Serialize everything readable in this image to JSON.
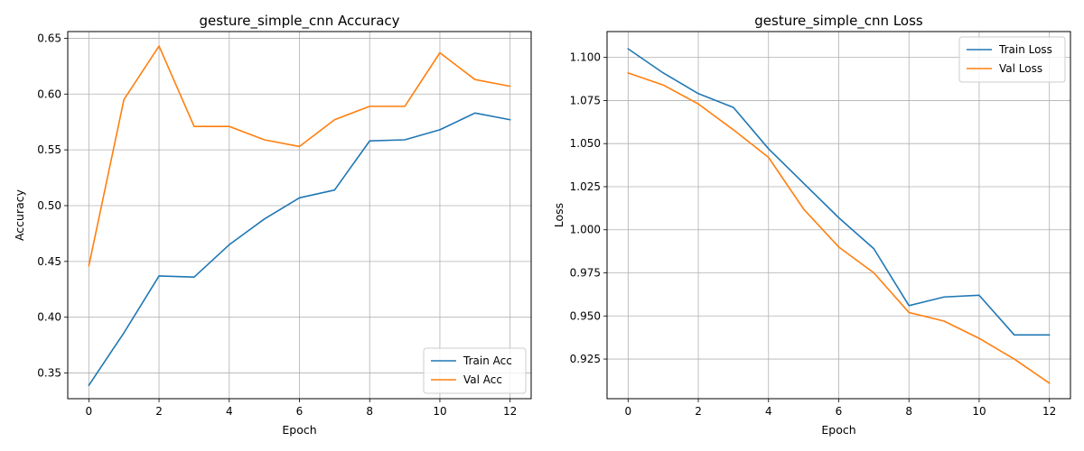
{
  "chart_data": [
    {
      "type": "line",
      "title": "gesture_simple_cnn Accuracy",
      "xlabel": "Epoch",
      "ylabel": "Accuracy",
      "xlim": [
        -0.6,
        12.6
      ],
      "ylim": [
        0.327,
        0.656
      ],
      "xticks": [
        0,
        2,
        4,
        6,
        8,
        10,
        12
      ],
      "yticks": [
        0.35,
        0.4,
        0.45,
        0.5,
        0.55,
        0.6,
        0.65
      ],
      "ytick_labels": [
        "0.35",
        "0.40",
        "0.45",
        "0.50",
        "0.55",
        "0.60",
        "0.65"
      ],
      "grid": true,
      "legend_position": "lower-right",
      "x": [
        0,
        1,
        2,
        3,
        4,
        5,
        6,
        7,
        8,
        9,
        10,
        11,
        12
      ],
      "series": [
        {
          "name": "Train Acc",
          "color": "#1f77b4",
          "values": [
            0.339,
            0.386,
            0.437,
            0.436,
            0.465,
            0.488,
            0.507,
            0.514,
            0.558,
            0.559,
            0.568,
            0.583,
            0.577
          ]
        },
        {
          "name": "Val Acc",
          "color": "#ff7f0e",
          "values": [
            0.446,
            0.595,
            0.643,
            0.571,
            0.571,
            0.559,
            0.553,
            0.577,
            0.589,
            0.589,
            0.637,
            0.613,
            0.607
          ]
        }
      ]
    },
    {
      "type": "line",
      "title": "gesture_simple_cnn Loss",
      "xlabel": "Epoch",
      "ylabel": "Loss",
      "xlim": [
        -0.6,
        12.6
      ],
      "ylim": [
        0.902,
        1.115
      ],
      "xticks": [
        0,
        2,
        4,
        6,
        8,
        10,
        12
      ],
      "yticks": [
        0.925,
        0.95,
        0.975,
        1.0,
        1.025,
        1.05,
        1.075,
        1.1
      ],
      "ytick_labels": [
        "0.925",
        "0.950",
        "0.975",
        "1.000",
        "1.025",
        "1.050",
        "1.075",
        "1.100"
      ],
      "grid": true,
      "legend_position": "upper-right",
      "x": [
        0,
        1,
        2,
        3,
        4,
        5,
        6,
        7,
        8,
        9,
        10,
        11,
        12
      ],
      "series": [
        {
          "name": "Train Loss",
          "color": "#1f77b4",
          "values": [
            1.105,
            1.091,
            1.079,
            1.071,
            1.047,
            1.027,
            1.007,
            0.989,
            0.956,
            0.961,
            0.962,
            0.939,
            0.939
          ]
        },
        {
          "name": "Val Loss",
          "color": "#ff7f0e",
          "values": [
            1.091,
            1.084,
            1.073,
            1.058,
            1.042,
            1.012,
            0.99,
            0.975,
            0.952,
            0.947,
            0.937,
            0.925,
            0.911
          ]
        }
      ]
    }
  ]
}
